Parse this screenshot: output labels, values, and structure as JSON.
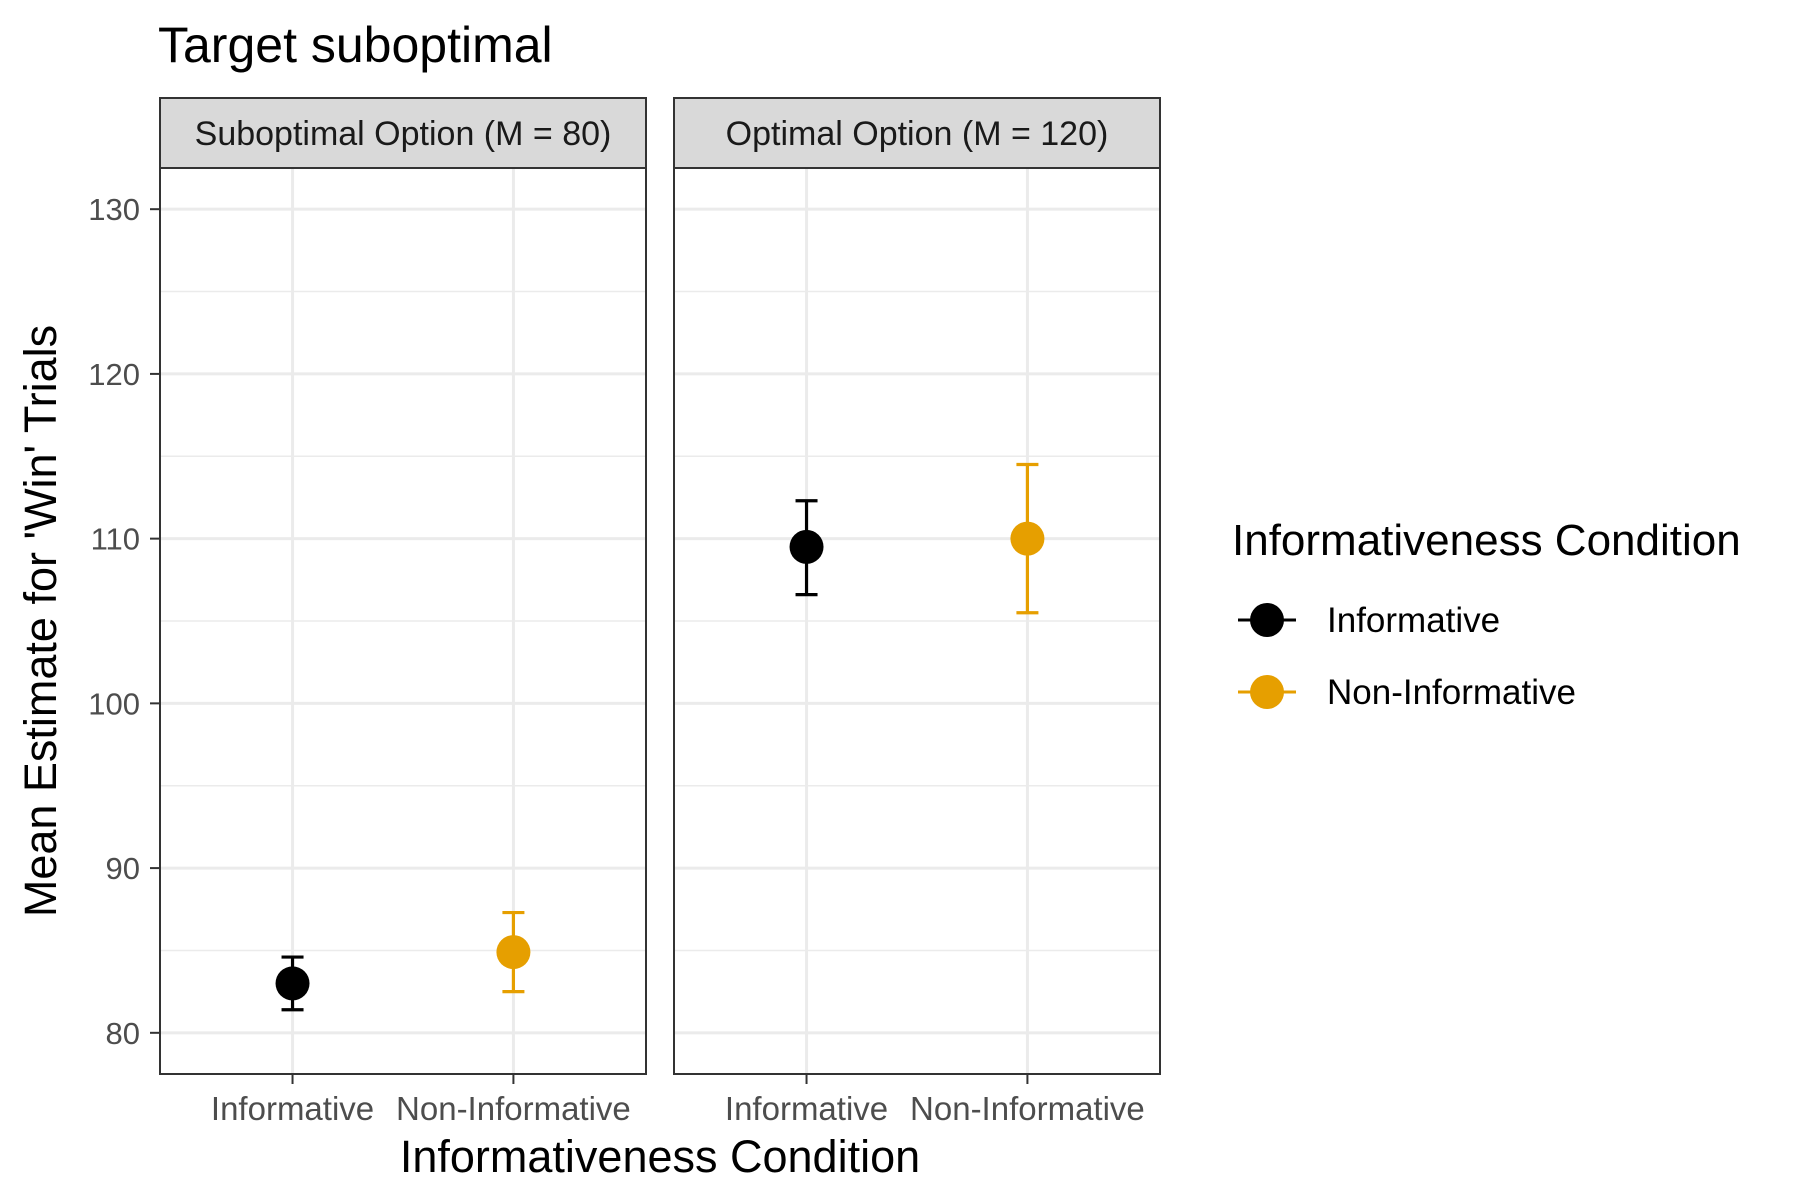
{
  "chart_data": {
    "type": "scatter",
    "title": "Target suboptimal",
    "xlabel": "Informativeness Condition",
    "ylabel": "Mean Estimate for 'Win' Trials",
    "ylim": [
      77.5,
      132.5
    ],
    "yticks": [
      80,
      90,
      100,
      110,
      120,
      130
    ],
    "grid": true,
    "categories": [
      "Informative",
      "Non-Informative"
    ],
    "legend": {
      "title": "Informativeness Condition",
      "placement": "right",
      "items": [
        {
          "label": "Informative",
          "color": "#000000"
        },
        {
          "label": "Non-Informative",
          "color": "#E69F00"
        }
      ]
    },
    "panels": [
      {
        "label": "Suboptimal Option (M = 80)",
        "points": [
          {
            "category": "Informative",
            "y": 83.0,
            "ymin": 81.4,
            "ymax": 84.6,
            "color": "#000000"
          },
          {
            "category": "Non-Informative",
            "y": 84.9,
            "ymin": 82.5,
            "ymax": 87.3,
            "color": "#E69F00"
          }
        ]
      },
      {
        "label": "Optimal Option (M = 120)",
        "points": [
          {
            "category": "Informative",
            "y": 109.5,
            "ymin": 106.6,
            "ymax": 112.3,
            "color": "#000000"
          },
          {
            "category": "Non-Informative",
            "y": 110.0,
            "ymin": 105.5,
            "ymax": 114.5,
            "color": "#E69F00"
          }
        ]
      }
    ]
  }
}
